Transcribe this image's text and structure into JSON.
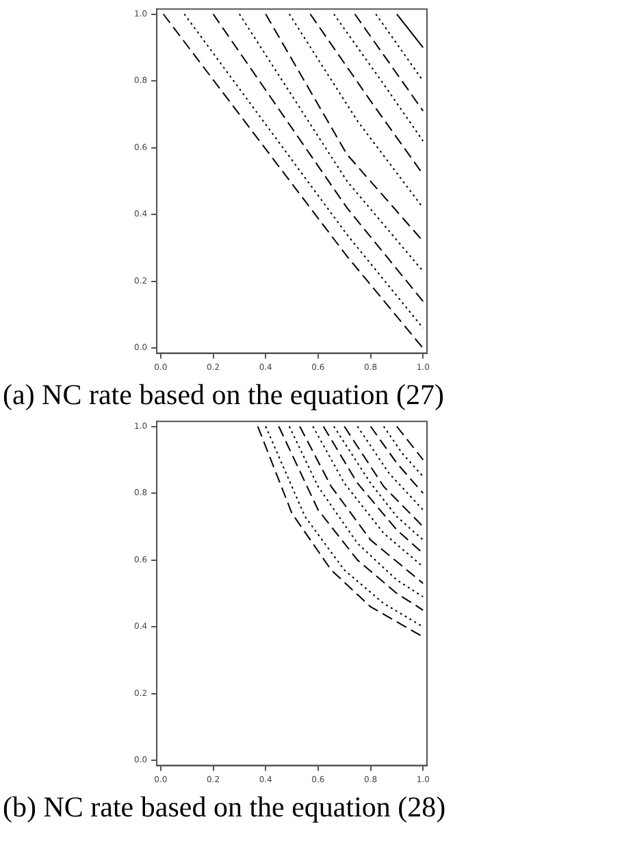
{
  "chart_data": [
    {
      "type": "line",
      "title": "(a) NC rate based on the equation (27)",
      "xlim": [
        -0.015,
        1.015
      ],
      "ylim": [
        -0.015,
        1.015
      ],
      "xticks": [
        {
          "value": 0,
          "label": "0.0"
        },
        {
          "value": 0.2,
          "label": "0.2"
        },
        {
          "value": 0.4,
          "label": "0.4"
        },
        {
          "value": 0.6,
          "label": "0.6"
        },
        {
          "value": 0.8,
          "label": "0.8"
        },
        {
          "value": 1,
          "label": "1.0"
        }
      ],
      "yticks": [
        {
          "value": 0,
          "label": "0.0"
        },
        {
          "value": 0.2,
          "label": "0.2"
        },
        {
          "value": 0.4,
          "label": "0.4"
        },
        {
          "value": 0.6,
          "label": "0.6"
        },
        {
          "value": 0.8,
          "label": "0.8"
        },
        {
          "value": 1,
          "label": "1.0"
        }
      ],
      "grid": false,
      "legend": false,
      "marker": "none",
      "series": [
        {
          "color": "#000000",
          "line_style": "dashed",
          "x": [
            0.01,
            0.71,
            1
          ],
          "values": [
            1,
            0.275,
            0
          ]
        },
        {
          "color": "#000000",
          "line_style": "dotted",
          "x": [
            0.09,
            0.71,
            1
          ],
          "values": [
            1,
            0.34,
            0.06
          ]
        },
        {
          "color": "#000000",
          "line_style": "dashed",
          "x": [
            0.2,
            0.71,
            1
          ],
          "values": [
            1,
            0.42,
            0.14
          ]
        },
        {
          "color": "#000000",
          "line_style": "dotted",
          "x": [
            0.3,
            0.71,
            1
          ],
          "values": [
            1,
            0.5,
            0.23
          ]
        },
        {
          "color": "#000000",
          "line_style": "dashed",
          "x": [
            0.4,
            0.71,
            1
          ],
          "values": [
            1,
            0.58,
            0.32
          ]
        },
        {
          "color": "#000000",
          "line_style": "dotted",
          "x": [
            0.49,
            0.75,
            1
          ],
          "values": [
            1,
            0.68,
            0.42
          ]
        },
        {
          "color": "#000000",
          "line_style": "dashed",
          "x": [
            0.57,
            0.8,
            1
          ],
          "values": [
            1,
            0.74,
            0.52
          ]
        },
        {
          "color": "#000000",
          "line_style": "dotted",
          "x": [
            0.66,
            0.85,
            1
          ],
          "values": [
            1,
            0.79,
            0.62
          ]
        },
        {
          "color": "#000000",
          "line_style": "dashed",
          "x": [
            0.74,
            1
          ],
          "values": [
            1,
            0.71
          ]
        },
        {
          "color": "#000000",
          "line_style": "dotted",
          "x": [
            0.82,
            1
          ],
          "values": [
            1,
            0.8
          ]
        },
        {
          "color": "#000000",
          "line_style": "solid",
          "x": [
            0.9,
            1
          ],
          "values": [
            1,
            0.9
          ]
        }
      ]
    },
    {
      "type": "line",
      "title": "(b) NC rate based on the equation (28)",
      "xlim": [
        -0.015,
        1.015
      ],
      "ylim": [
        -0.015,
        1.015
      ],
      "xticks": [
        {
          "value": 0,
          "label": "0.0"
        },
        {
          "value": 0.2,
          "label": "0.2"
        },
        {
          "value": 0.4,
          "label": "0.4"
        },
        {
          "value": 0.6,
          "label": "0.6"
        },
        {
          "value": 0.8,
          "label": "0.8"
        },
        {
          "value": 1,
          "label": "1.0"
        }
      ],
      "yticks": [
        {
          "value": 0,
          "label": "0.0"
        },
        {
          "value": 0.2,
          "label": "0.2"
        },
        {
          "value": 0.4,
          "label": "0.4"
        },
        {
          "value": 0.6,
          "label": "0.6"
        },
        {
          "value": 0.8,
          "label": "0.8"
        },
        {
          "value": 1,
          "label": "1.0"
        }
      ],
      "grid": false,
      "legend": false,
      "marker": "none",
      "series": [
        {
          "color": "#000000",
          "line_style": "dashed",
          "x": [
            0.37,
            0.5,
            0.65,
            0.8,
            1
          ],
          "values": [
            1,
            0.74,
            0.57,
            0.46,
            0.37
          ]
        },
        {
          "color": "#000000",
          "line_style": "dotted",
          "x": [
            0.4,
            0.55,
            0.7,
            0.85,
            1
          ],
          "values": [
            1,
            0.73,
            0.57,
            0.47,
            0.4
          ]
        },
        {
          "color": "#000000",
          "line_style": "dashed",
          "x": [
            0.45,
            0.6,
            0.75,
            0.9,
            1
          ],
          "values": [
            1,
            0.75,
            0.6,
            0.5,
            0.45
          ]
        },
        {
          "color": "#000000",
          "line_style": "dotted",
          "x": [
            0.49,
            0.6,
            0.75,
            0.9,
            1
          ],
          "values": [
            1,
            0.82,
            0.65,
            0.54,
            0.49
          ]
        },
        {
          "color": "#000000",
          "line_style": "dashed",
          "x": [
            0.53,
            0.65,
            0.8,
            1
          ],
          "values": [
            1,
            0.82,
            0.66,
            0.53
          ]
        },
        {
          "color": "#000000",
          "line_style": "dotted",
          "x": [
            0.58,
            0.7,
            0.85,
            1
          ],
          "values": [
            1,
            0.83,
            0.68,
            0.58
          ]
        },
        {
          "color": "#000000",
          "line_style": "dashed",
          "x": [
            0.62,
            0.75,
            0.9,
            1
          ],
          "values": [
            1,
            0.83,
            0.69,
            0.62
          ]
        },
        {
          "color": "#000000",
          "line_style": "dotted",
          "x": [
            0.66,
            0.8,
            0.9,
            1
          ],
          "values": [
            1,
            0.83,
            0.73,
            0.66
          ]
        },
        {
          "color": "#000000",
          "line_style": "dashed",
          "x": [
            0.7,
            0.85,
            1
          ],
          "values": [
            1,
            0.82,
            0.7
          ]
        },
        {
          "color": "#000000",
          "line_style": "dotted",
          "x": [
            0.75,
            0.87,
            1
          ],
          "values": [
            1,
            0.86,
            0.75
          ]
        },
        {
          "color": "#000000",
          "line_style": "dashed",
          "x": [
            0.8,
            0.9,
            1
          ],
          "values": [
            1,
            0.89,
            0.8
          ]
        },
        {
          "color": "#000000",
          "line_style": "dotted",
          "x": [
            0.85,
            0.92,
            1
          ],
          "values": [
            1,
            0.92,
            0.85
          ]
        },
        {
          "color": "#000000",
          "line_style": "dashed",
          "x": [
            0.9,
            1
          ],
          "values": [
            1,
            0.9
          ]
        }
      ]
    }
  ]
}
